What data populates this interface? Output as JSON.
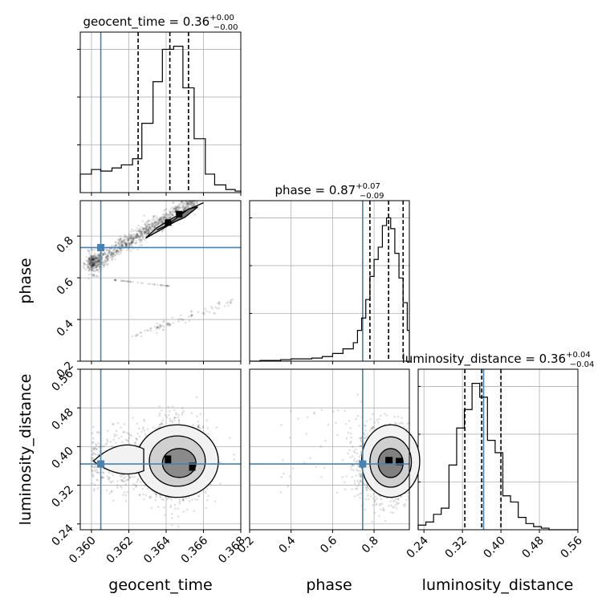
{
  "chart_data": {
    "type": "corner",
    "parameters": [
      "geocent_time",
      "phase",
      "luminosity_distance"
    ],
    "axis_labels": [
      "geocent_time",
      "phase",
      "luminosity_distance"
    ],
    "ranges": [
      [
        0.3594,
        0.368
      ],
      [
        0.2,
        0.97
      ],
      [
        0.228,
        0.56
      ]
    ],
    "ticks": [
      {
        "values": [
          0.36,
          0.362,
          0.364,
          0.366,
          0.368
        ],
        "labels": [
          "0.360",
          "0.362",
          "0.364",
          "0.366",
          "0.368"
        ]
      },
      {
        "values": [
          0.2,
          0.4,
          0.6,
          0.8
        ],
        "labels": [
          "0.2",
          "0.4",
          "0.6",
          "0.8"
        ]
      },
      {
        "values": [
          0.24,
          0.32,
          0.4,
          0.48,
          0.56
        ],
        "labels": [
          "0.24",
          "0.32",
          "0.40",
          "0.48",
          "0.56"
        ]
      }
    ],
    "truths": [
      0.3605,
      0.745,
      0.364
    ],
    "truth_color": "#4682b4",
    "titles": [
      {
        "text": "geocent_time = 0.36",
        "sup": "+0.00",
        "sub": "−0.00"
      },
      {
        "text": "phase = 0.87",
        "sup": "+0.07",
        "sub": "−0.09"
      },
      {
        "text": "luminosity_distance = 0.36",
        "sup": "+0.04",
        "sub": "−0.04"
      }
    ],
    "quantiles": [
      [
        0.3625,
        0.3642,
        0.3652
      ],
      [
        0.78,
        0.87,
        0.94
      ],
      [
        0.325,
        0.36,
        0.4
      ]
    ],
    "histograms": [
      {
        "bin_edges": [
          0.3594,
          0.36,
          0.3605,
          0.3611,
          0.3616,
          0.3622,
          0.3627,
          0.3633,
          0.3638,
          0.3644,
          0.3649,
          0.3655,
          0.3661,
          0.3666,
          0.3672,
          0.3677,
          0.368
        ],
        "counts": [
          0.12,
          0.15,
          0.14,
          0.16,
          0.18,
          0.22,
          0.45,
          0.72,
          0.93,
          0.95,
          0.68,
          0.35,
          0.12,
          0.05,
          0.02,
          0.01
        ]
      },
      {
        "bin_edges": [
          0.2,
          0.25,
          0.3,
          0.35,
          0.4,
          0.45,
          0.5,
          0.55,
          0.6,
          0.65,
          0.7,
          0.72,
          0.74,
          0.76,
          0.78,
          0.8,
          0.82,
          0.84,
          0.86,
          0.88,
          0.9,
          0.92,
          0.94,
          0.96,
          0.97
        ],
        "counts": [
          0.0,
          0.005,
          0.005,
          0.01,
          0.015,
          0.015,
          0.02,
          0.03,
          0.05,
          0.08,
          0.12,
          0.2,
          0.28,
          0.4,
          0.55,
          0.66,
          0.74,
          0.88,
          0.93,
          0.86,
          0.7,
          0.54,
          0.38,
          0.2
        ]
      },
      {
        "bin_edges": [
          0.228,
          0.244,
          0.26,
          0.276,
          0.292,
          0.308,
          0.324,
          0.34,
          0.356,
          0.372,
          0.388,
          0.404,
          0.42,
          0.436,
          0.452,
          0.468,
          0.484,
          0.5,
          0.516,
          0.532,
          0.56
        ],
        "counts": [
          0.03,
          0.05,
          0.1,
          0.14,
          0.42,
          0.66,
          0.78,
          0.95,
          0.86,
          0.58,
          0.5,
          0.22,
          0.18,
          0.08,
          0.04,
          0.02,
          0.01,
          0.0,
          0.0,
          0.0
        ]
      }
    ]
  }
}
